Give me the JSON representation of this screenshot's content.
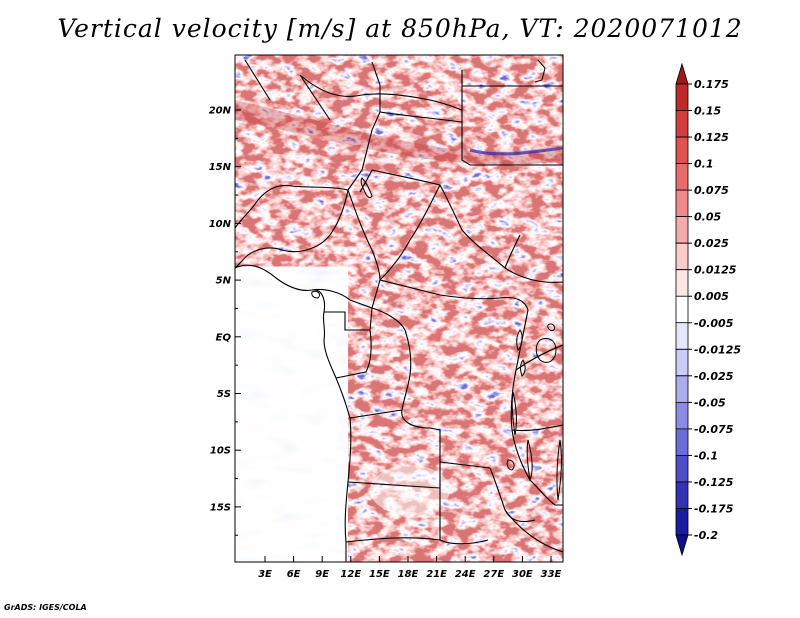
{
  "title": "Vertical velocity [m/s] at 850hPa, VT: 2020071012",
  "footer": "GrADS: IGES/COLA",
  "map": {
    "lat_labels": [
      "20N",
      "15N",
      "10N",
      "5N",
      "EQ",
      "5S",
      "10S",
      "15S"
    ],
    "lon_labels": [
      "3E",
      "6E",
      "9E",
      "12E",
      "15E",
      "18E",
      "21E",
      "24E",
      "27E",
      "30E",
      "33E"
    ]
  },
  "colorbar": {
    "levels": [
      "0.175",
      "0.15",
      "0.125",
      "0.1",
      "0.075",
      "0.05",
      "0.025",
      "0.0125",
      "0.005",
      "-0.005",
      "-0.0125",
      "-0.025",
      "-0.05",
      "-0.075",
      "-0.1",
      "-0.125",
      "-0.175",
      "-0.2"
    ],
    "colors": [
      "#a01818",
      "#bc2a2a",
      "#d23c3c",
      "#e05252",
      "#e86c6c",
      "#ef8b8b",
      "#f5abab",
      "#f9cbcb",
      "#fde6e6",
      "#ffffff",
      "#e6e6fb",
      "#cbcbf6",
      "#ababee",
      "#8b8be4",
      "#6c6cd8",
      "#4e4ec8",
      "#3232b4",
      "#1c1ca0",
      "#10108c"
    ]
  }
}
